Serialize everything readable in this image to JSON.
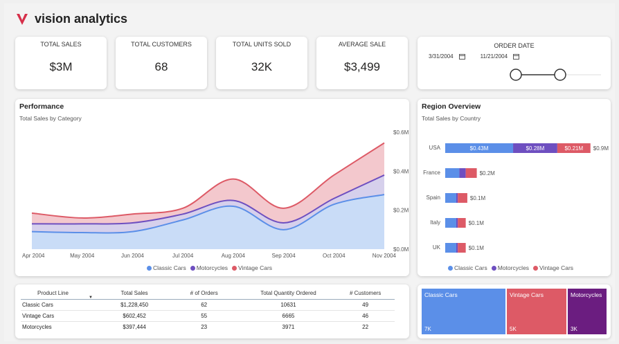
{
  "app": {
    "title": "vision analytics"
  },
  "kpis": [
    {
      "title": "TOTAL SALES",
      "value": "$3M"
    },
    {
      "title": "TOTAL CUSTOMERS",
      "value": "68"
    },
    {
      "title": "TOTAL UNITS SOLD",
      "value": "32K"
    },
    {
      "title": "AVERAGE SALE",
      "value": "$3,499"
    }
  ],
  "order_date": {
    "title": "ORDER DATE",
    "start": "3/31/2004",
    "end": "11/21/2004"
  },
  "performance": {
    "title": "Performance",
    "subtitle": "Total Sales by Category",
    "legend": [
      "Classic Cars",
      "Motorcycles",
      "Vintage Cars"
    ]
  },
  "region": {
    "title": "Region Overview",
    "subtitle": "Total Sales by Country",
    "legend": [
      "Classic Cars",
      "Motorcycles",
      "Vintage Cars"
    ]
  },
  "table": {
    "headers": [
      "Product Line",
      "Total Sales",
      "# of Orders",
      "Total Quantity Ordered",
      "# Customers"
    ],
    "rows": [
      [
        "Classic Cars",
        "$1,228,450",
        "62",
        "10631",
        "49"
      ],
      [
        "Vintage Cars",
        "$602,452",
        "55",
        "6665",
        "46"
      ],
      [
        "Motorcycles",
        "$397,444",
        "23",
        "3971",
        "22"
      ]
    ]
  },
  "treemap": [
    {
      "label": "Classic Cars",
      "value": "7K",
      "color": "#5b8fe8"
    },
    {
      "label": "Vintage Cars",
      "value": "5K",
      "color": "#dd5a66"
    },
    {
      "label": "Motorcycles",
      "value": "3K",
      "color": "#6b1d80"
    }
  ],
  "colors": {
    "classic": "#5b8fe8",
    "motorcycles": "#6e4fc0",
    "vintage": "#dd5a66"
  },
  "chart_data": [
    {
      "type": "area",
      "x": [
        "Apr 2004",
        "May 2004",
        "Jun 2004",
        "Jul 2004",
        "Aug 2004",
        "Sep 2004",
        "Oct 2004",
        "Nov 2004"
      ],
      "yticks": [
        "$0.0M",
        "$0.2M",
        "$0.4M",
        "$0.6M"
      ],
      "ylim": [
        0,
        0.6
      ],
      "series": [
        {
          "name": "Classic Cars",
          "values": [
            0.09,
            0.085,
            0.09,
            0.15,
            0.22,
            0.1,
            0.23,
            0.28
          ]
        },
        {
          "name": "Motorcycles",
          "values": [
            0.13,
            0.13,
            0.135,
            0.18,
            0.25,
            0.135,
            0.26,
            0.38
          ]
        },
        {
          "name": "Vintage Cars",
          "values": [
            0.185,
            0.16,
            0.18,
            0.21,
            0.36,
            0.21,
            0.38,
            0.545
          ]
        }
      ]
    },
    {
      "type": "bar",
      "categories": [
        "USA",
        "France",
        "Spain",
        "Italy",
        "UK"
      ],
      "totals": [
        "$0.9M",
        "$0.2M",
        "$0.1M",
        "$0.1M",
        "$0.1M"
      ],
      "series": [
        {
          "name": "Classic Cars",
          "values": [
            0.43,
            0.09,
            0.07,
            0.07,
            0.07
          ],
          "labels": [
            "$0.43M",
            "",
            "",
            "",
            ""
          ]
        },
        {
          "name": "Motorcycles",
          "values": [
            0.28,
            0.04,
            0.01,
            0.01,
            0.01
          ],
          "labels": [
            "$0.28M",
            "",
            "",
            "",
            ""
          ]
        },
        {
          "name": "Vintage Cars",
          "values": [
            0.21,
            0.07,
            0.06,
            0.05,
            0.05
          ],
          "labels": [
            "$0.21M",
            "",
            "",
            "",
            ""
          ]
        }
      ]
    }
  ]
}
